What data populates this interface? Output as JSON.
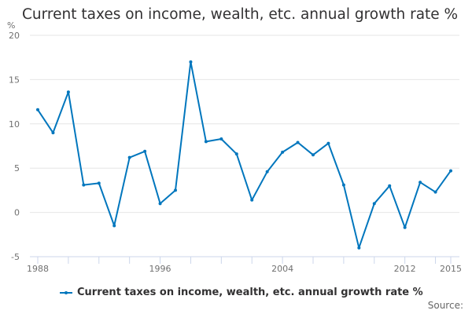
{
  "title": "Current taxes on income, wealth, etc. annual growth rate %",
  "unit_label": "%",
  "legend": {
    "label": "Current taxes on income, wealth, etc. annual growth rate %",
    "color": "#0076bd"
  },
  "source": {
    "label": "Source:"
  },
  "chart_data": {
    "type": "line",
    "title": "Current taxes on income, wealth, etc. annual growth rate %",
    "xlabel": "",
    "ylabel": "%",
    "ylim": [
      -5,
      20
    ],
    "yticks": [
      -5,
      0,
      5,
      10,
      15,
      20
    ],
    "xtick_labels": [
      "1988",
      "1996",
      "2004",
      "2012",
      "2015"
    ],
    "grid": true,
    "legend_position": "bottom",
    "x": [
      1988,
      1989,
      1990,
      1991,
      1992,
      1993,
      1994,
      1995,
      1996,
      1997,
      1998,
      1999,
      2000,
      2001,
      2002,
      2003,
      2004,
      2005,
      2006,
      2007,
      2008,
      2009,
      2010,
      2011,
      2012,
      2013,
      2014,
      2015
    ],
    "series": [
      {
        "name": "Current taxes on income, wealth, etc. annual growth rate %",
        "color": "#0076bd",
        "values": [
          11.6,
          9.0,
          13.6,
          3.1,
          3.3,
          -1.5,
          6.2,
          6.9,
          1.0,
          2.5,
          17.0,
          8.0,
          8.3,
          6.6,
          1.4,
          4.6,
          6.8,
          7.9,
          6.5,
          7.8,
          3.1,
          -4.0,
          1.0,
          3.0,
          -1.7,
          3.4,
          2.3,
          4.7
        ]
      }
    ]
  }
}
